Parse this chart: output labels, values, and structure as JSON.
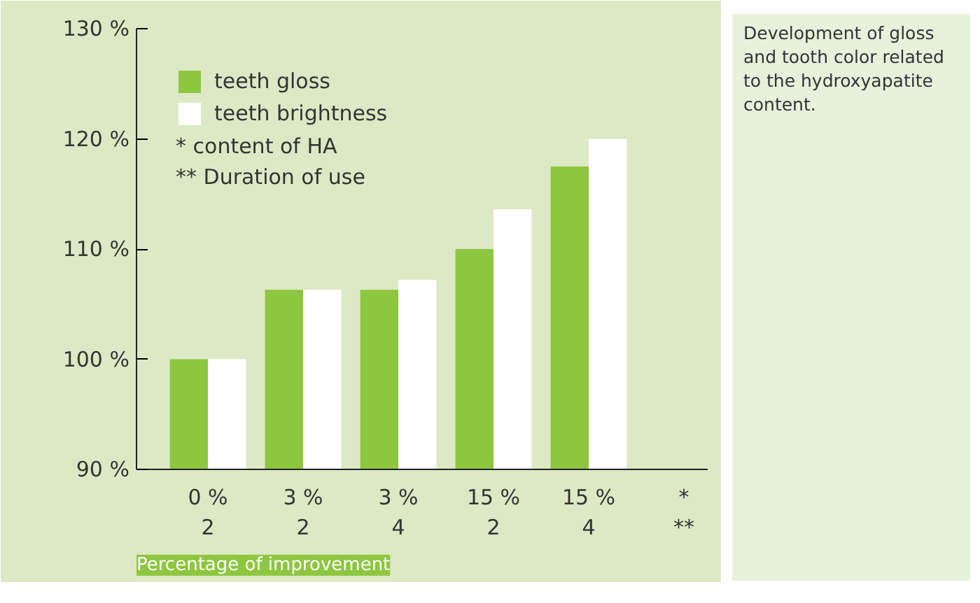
{
  "chart_data": {
    "type": "bar",
    "title": "Percentage of improvement",
    "subtitle": "Development of gloss and tooth color related to the hydroxyapatite content.",
    "categories": [
      "0 %\n2",
      "3 %\n2",
      "3 %\n4",
      "15 %\n2",
      "15 %\n4",
      "*\n**"
    ],
    "series": [
      {
        "name": "teeth gloss",
        "color": "#8dc63f",
        "values": [
          100,
          106.3,
          106.3,
          110,
          117.5,
          null
        ]
      },
      {
        "name": "teeth brightness",
        "color": "#ffffff",
        "values": [
          100,
          106.3,
          107.2,
          113.6,
          120,
          null
        ]
      }
    ],
    "ylim": [
      90,
      130
    ],
    "yticks": [
      {
        "value": 90,
        "label": "90 %"
      },
      {
        "value": 100,
        "label": "100 %"
      },
      {
        "value": 110,
        "label": "110 %"
      },
      {
        "value": 120,
        "label": "120 %"
      },
      {
        "value": 130,
        "label": "130 %"
      }
    ],
    "annotations": [
      "*    content of HA",
      "**  Duration of use"
    ],
    "legend": "top left",
    "grid": false
  }
}
